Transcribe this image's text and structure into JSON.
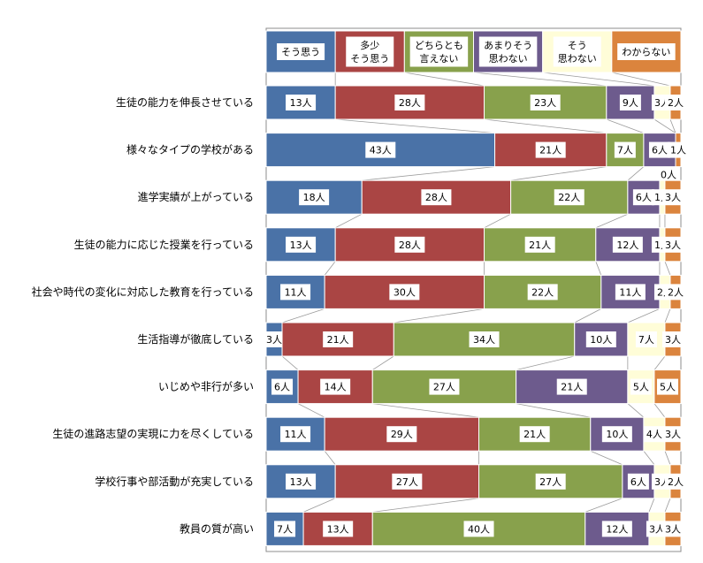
{
  "chart_data": {
    "type": "bar",
    "orientation": "horizontal",
    "stacked": "percent",
    "unit_suffix": "人",
    "legend_position": "top",
    "series": [
      {
        "name": "そう思う",
        "color": "#4a72a7"
      },
      {
        "name": "多少\nそう思う",
        "color": "#aa4544"
      },
      {
        "name": "どちらとも\n言えない",
        "color": "#88a14c"
      },
      {
        "name": "あまりそう\n思わない",
        "color": "#6d5b8d"
      },
      {
        "name": "そう\n思わない",
        "color": "#fffdd8"
      },
      {
        "name": "わからない",
        "color": "#db843d"
      }
    ],
    "categories": [
      "生徒の能力を伸長させている",
      "様々なタイプの学校がある",
      "進学実績が上がっている",
      "生徒の能力に応じた授業を行っている",
      "社会や時代の変化に対応した教育を行っている",
      "生活指導が徹底している",
      "いじめや非行が多い",
      "生徒の進路志望の実現に力を尽くしている",
      "学校行事や部活動が充実している",
      "教員の質が高い"
    ],
    "values": [
      [
        13,
        28,
        23,
        9,
        3,
        2
      ],
      [
        43,
        21,
        7,
        6,
        0,
        1
      ],
      [
        18,
        28,
        22,
        6,
        1,
        3
      ],
      [
        13,
        28,
        21,
        12,
        1,
        3
      ],
      [
        11,
        30,
        22,
        11,
        2,
        2
      ],
      [
        3,
        21,
        34,
        10,
        7,
        3
      ],
      [
        6,
        14,
        27,
        21,
        5,
        5
      ],
      [
        11,
        29,
        21,
        10,
        4,
        3
      ],
      [
        13,
        27,
        27,
        6,
        3,
        2
      ],
      [
        7,
        13,
        40,
        12,
        3,
        3
      ]
    ]
  }
}
